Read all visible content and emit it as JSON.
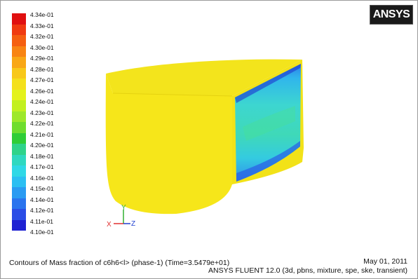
{
  "legend": {
    "colors": [
      "#e01010",
      "#f03a10",
      "#f55f10",
      "#f88413",
      "#f9a716",
      "#f8c81a",
      "#f4e01c",
      "#e4f21c",
      "#c2f020",
      "#9ee82a",
      "#6fdd2e",
      "#2fcd36",
      "#2fd38a",
      "#2fd8c0",
      "#2fd8e6",
      "#2bbff2",
      "#2a9bf2",
      "#2a74ee",
      "#2a4de6",
      "#1f22d2"
    ],
    "ticks": [
      "4.34e-01",
      "4.33e-01",
      "4.32e-01",
      "4.30e-01",
      "4.29e-01",
      "4.28e-01",
      "4.27e-01",
      "4.26e-01",
      "4.24e-01",
      "4.23e-01",
      "4.22e-01",
      "4.21e-01",
      "4.20e-01",
      "4.18e-01",
      "4.17e-01",
      "4.16e-01",
      "4.15e-01",
      "4.14e-01",
      "4.12e-01",
      "4.11e-01",
      "4.10e-01"
    ]
  },
  "logo": "ANSYS",
  "triad": {
    "x_label": "X",
    "y_label": "Y",
    "z_label": "Z",
    "x_color": "#e03030",
    "y_color": "#30b030",
    "z_color": "#2040d0"
  },
  "footer": {
    "caption": "Contours of Mass fraction of c6h6<l> (phase-1)  (Time=3.5479e+01)",
    "date": "May 01, 2011",
    "solver": "ANSYS FLUENT 12.0 (3d, pbns, mixture, spe, ske, transient)"
  },
  "geometry_colors": {
    "body": "#f6e61a",
    "body_shade": "#e9d514",
    "face_core": "#3fd6c4",
    "face_low": "#2a6ee8"
  }
}
